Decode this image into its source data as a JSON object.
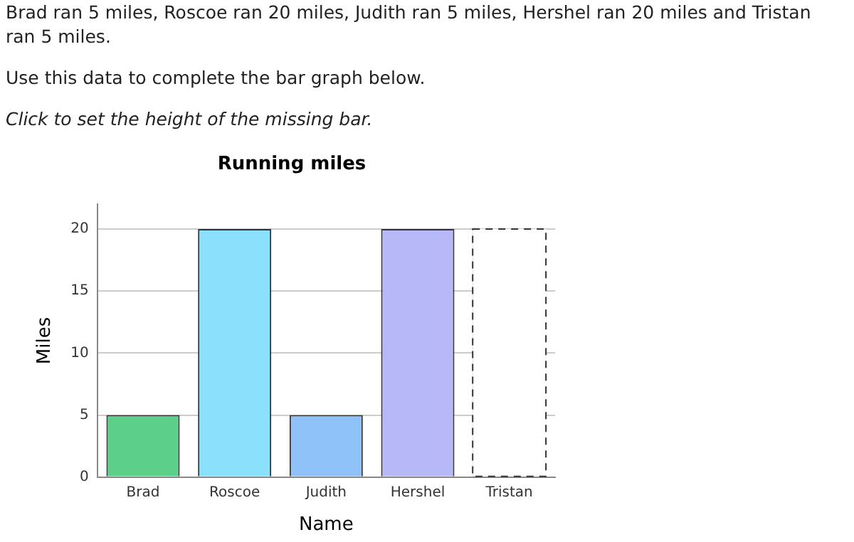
{
  "chart_data": {
    "type": "bar",
    "title": "Running miles",
    "xlabel": "Name",
    "ylabel": "Miles",
    "categories": [
      "Brad",
      "Roscoe",
      "Judith",
      "Hershel",
      "Tristan"
    ],
    "values": [
      5,
      20,
      5,
      20,
      20
    ],
    "colors": [
      "#5cd08a",
      "#8be0fb",
      "#8fc2f9",
      "#b7b8f7",
      "#ffffff"
    ],
    "ylim": [
      0,
      22
    ],
    "yticks": [
      0,
      5,
      10,
      15,
      20
    ],
    "grid": "y",
    "annotations": [
      "Brad ran 5 miles, Roscoe ran 20 miles, Judith ran 5 miles, Hershel ran 20 miles and Tristan ran 5 miles.",
      "Use this data to complete the bar graph below.",
      "Click to set the height of the missing bar."
    ]
  }
}
